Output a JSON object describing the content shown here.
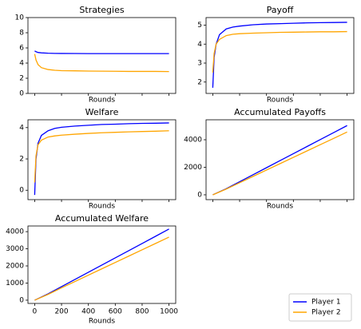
{
  "chart_data": [
    {
      "type": "line",
      "title": "Strategies",
      "x_label": "Rounds",
      "x": [
        0,
        10,
        25,
        50,
        100,
        150,
        200,
        300,
        400,
        500,
        600,
        700,
        800,
        900,
        1000
      ],
      "series": [
        {
          "name": "Player 1",
          "color": "#0000ff",
          "values": [
            5.6,
            5.5,
            5.4,
            5.35,
            5.3,
            5.28,
            5.27,
            5.26,
            5.25,
            5.25,
            5.25,
            5.25,
            5.25,
            5.25,
            5.25
          ]
        },
        {
          "name": "Player 2",
          "color": "#ffa500",
          "values": [
            5.2,
            4.4,
            3.8,
            3.4,
            3.15,
            3.05,
            3.0,
            2.98,
            2.95,
            2.93,
            2.92,
            2.9,
            2.9,
            2.9,
            2.88
          ]
        }
      ],
      "xlim": [
        -50,
        1050
      ],
      "xticks": [
        0,
        200,
        400,
        600,
        800,
        1000
      ],
      "xtick_labels": false,
      "ylim": [
        0,
        10
      ],
      "yticks": [
        0,
        2,
        4,
        6,
        8,
        10
      ]
    },
    {
      "type": "line",
      "title": "Payoff",
      "x_label": "Rounds",
      "x": [
        0,
        10,
        25,
        50,
        100,
        150,
        200,
        300,
        400,
        500,
        600,
        700,
        800,
        900,
        1000
      ],
      "series": [
        {
          "name": "Player 1",
          "color": "#0000ff",
          "values": [
            1.7,
            3.3,
            4.0,
            4.5,
            4.8,
            4.9,
            4.95,
            5.02,
            5.06,
            5.08,
            5.1,
            5.12,
            5.13,
            5.14,
            5.15
          ]
        },
        {
          "name": "Player 2",
          "color": "#ffa500",
          "values": [
            2.5,
            3.5,
            4.0,
            4.25,
            4.45,
            4.52,
            4.55,
            4.58,
            4.6,
            4.62,
            4.63,
            4.64,
            4.65,
            4.65,
            4.66
          ]
        }
      ],
      "xlim": [
        -50,
        1050
      ],
      "xticks": [
        0,
        200,
        400,
        600,
        800,
        1000
      ],
      "xtick_labels": false,
      "ylim": [
        1.4,
        5.4
      ],
      "yticks": [
        2,
        3,
        4,
        5
      ]
    },
    {
      "type": "line",
      "title": "Welfare",
      "x_label": "Rounds",
      "x": [
        0,
        10,
        25,
        50,
        100,
        150,
        200,
        300,
        400,
        500,
        600,
        700,
        800,
        900,
        1000
      ],
      "series": [
        {
          "name": "Player 1",
          "color": "#0000ff",
          "values": [
            -0.3,
            2.0,
            3.0,
            3.5,
            3.8,
            3.95,
            4.02,
            4.1,
            4.15,
            4.2,
            4.22,
            4.25,
            4.27,
            4.28,
            4.3
          ]
        },
        {
          "name": "Player 2",
          "color": "#ffa500",
          "values": [
            0.5,
            2.2,
            2.9,
            3.2,
            3.4,
            3.47,
            3.52,
            3.58,
            3.63,
            3.67,
            3.7,
            3.73,
            3.75,
            3.77,
            3.8
          ]
        }
      ],
      "xlim": [
        -50,
        1050
      ],
      "xticks": [
        0,
        200,
        400,
        600,
        800,
        1000
      ],
      "xtick_labels": false,
      "ylim": [
        -0.6,
        4.5
      ],
      "yticks": [
        0,
        2,
        4
      ]
    },
    {
      "type": "line",
      "title": "Accumulated Payoffs",
      "x_label": "Rounds",
      "x": [
        0,
        100,
        200,
        300,
        400,
        500,
        600,
        700,
        800,
        900,
        1000
      ],
      "series": [
        {
          "name": "Player 1",
          "color": "#0000ff",
          "values": [
            0,
            440,
            950,
            1460,
            1970,
            2480,
            2990,
            3500,
            4010,
            4520,
            5030
          ]
        },
        {
          "name": "Player 2",
          "color": "#ffa500",
          "values": [
            0,
            420,
            880,
            1340,
            1800,
            2260,
            2720,
            3180,
            3640,
            4100,
            4560
          ]
        }
      ],
      "xlim": [
        -50,
        1050
      ],
      "xticks": [
        0,
        200,
        400,
        600,
        800,
        1000
      ],
      "xtick_labels": false,
      "ylim": [
        -350,
        5450
      ],
      "yticks": [
        0,
        2000,
        4000
      ]
    },
    {
      "type": "line",
      "title": "Accumulated Welfare",
      "x_label": "Rounds",
      "x": [
        0,
        100,
        200,
        300,
        400,
        500,
        600,
        700,
        800,
        900,
        1000
      ],
      "series": [
        {
          "name": "Player 1",
          "color": "#0000ff",
          "values": [
            0,
            370,
            790,
            1210,
            1630,
            2050,
            2470,
            2890,
            3310,
            3730,
            4150
          ]
        },
        {
          "name": "Player 2",
          "color": "#ffa500",
          "values": [
            0,
            340,
            720,
            1090,
            1460,
            1830,
            2200,
            2570,
            2940,
            3310,
            3680
          ]
        }
      ],
      "xlim": [
        -50,
        1050
      ],
      "xticks": [
        0,
        200,
        400,
        600,
        800,
        1000
      ],
      "xtick_labels": true,
      "ylim": [
        -190,
        4330
      ],
      "yticks": [
        0,
        1000,
        2000,
        3000,
        4000
      ],
      "legend": "lower right"
    }
  ]
}
